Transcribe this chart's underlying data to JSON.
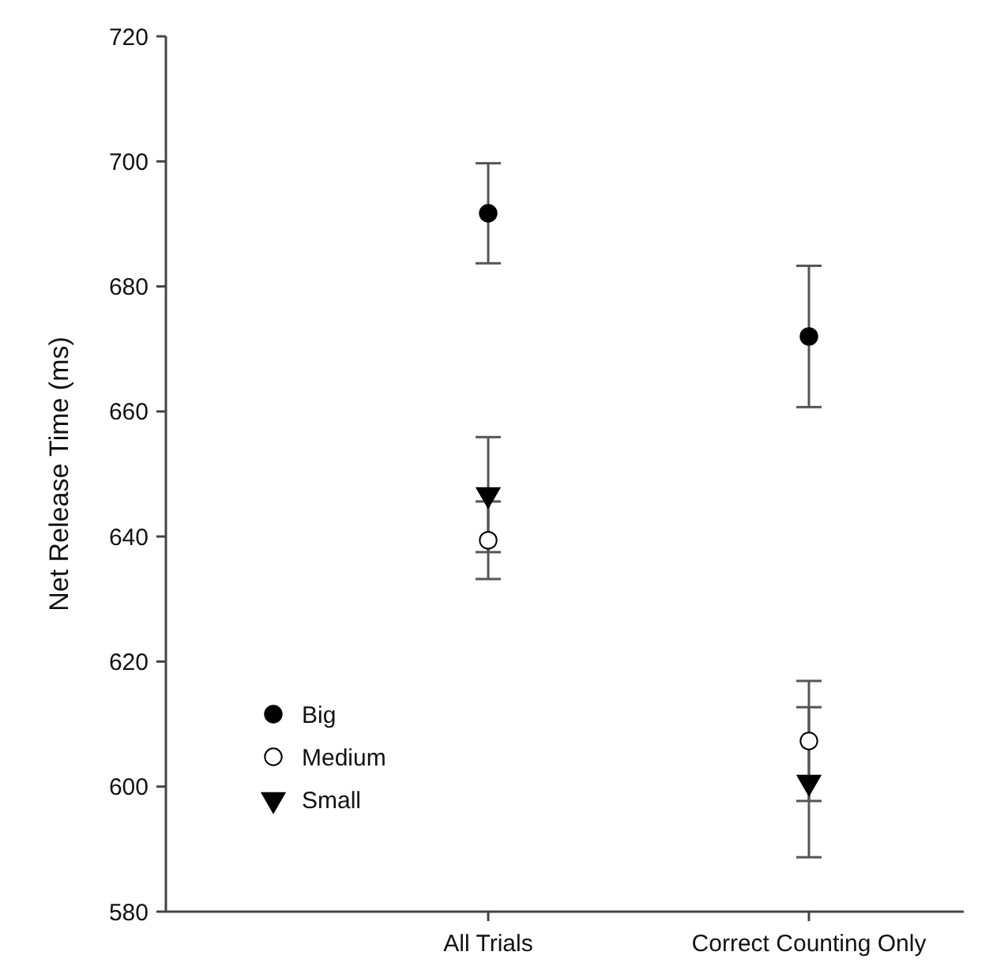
{
  "chart_data": {
    "type": "scatter",
    "ylabel": "Net Release Time (ms)",
    "categories": [
      "All Trials",
      "Correct Counting Only"
    ],
    "series": [
      {
        "name": "Big",
        "color": "#000000",
        "marker": "circle",
        "values": [
          691.7,
          672.0
        ],
        "errors": [
          8.0,
          11.3
        ]
      },
      {
        "name": "Medium",
        "color": "#ffffff",
        "marker": "circle",
        "values": [
          639.4,
          607.3
        ],
        "errors": [
          6.2,
          9.6
        ]
      },
      {
        "name": "Small",
        "color": "#000000",
        "marker": "triangle",
        "values": [
          646.7,
          600.7
        ],
        "errors": [
          9.2,
          12.0
        ]
      }
    ],
    "ylim": [
      580,
      720
    ],
    "yticks": [
      580,
      600,
      620,
      640,
      660,
      680,
      700,
      720
    ],
    "grid": false,
    "legend": "bottom left"
  }
}
